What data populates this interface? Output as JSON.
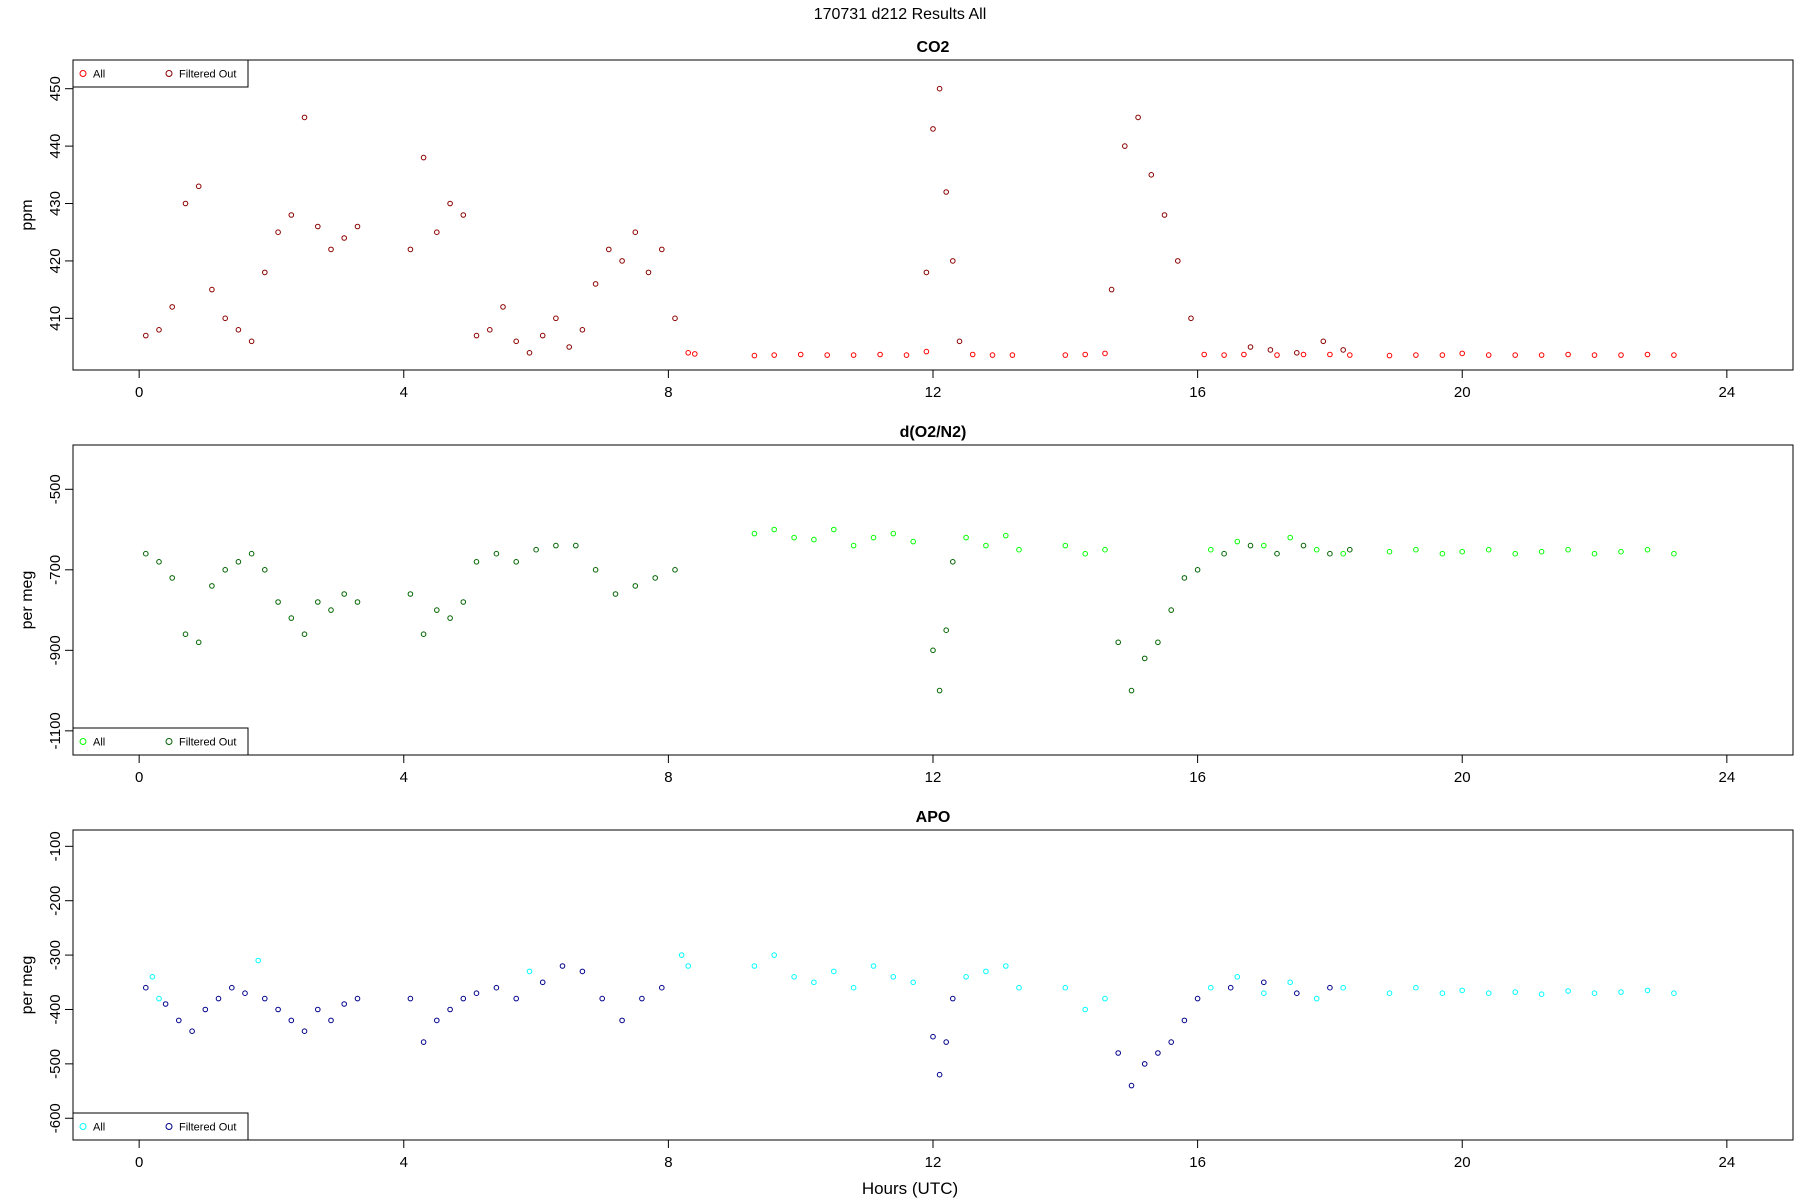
{
  "figure": {
    "title": "170731   d212   Results All",
    "xlabel": "Hours (UTC)"
  },
  "chart_data": [
    {
      "type": "scatter",
      "title": "CO2",
      "ylabel": "ppm",
      "xlim": [
        -1,
        25
      ],
      "ylim": [
        401,
        455
      ],
      "xticks": [
        0,
        4,
        8,
        12,
        16,
        20,
        24
      ],
      "yticks": [
        410,
        420,
        430,
        440,
        450
      ],
      "legend_position": "top-left",
      "colors": {
        "all": "#ff0000",
        "filtered": "#8b0000"
      },
      "series": [
        {
          "name": "All",
          "x": [
            8.3,
            8.4,
            9.3,
            9.6,
            10.0,
            10.4,
            10.8,
            11.2,
            11.6,
            11.9,
            12.6,
            12.9,
            13.2,
            14.0,
            14.3,
            14.6,
            16.1,
            16.4,
            16.7,
            17.2,
            17.6,
            18.0,
            18.3,
            18.9,
            19.3,
            19.7,
            20.0,
            20.4,
            20.8,
            21.2,
            21.6,
            22.0,
            22.4,
            22.8,
            23.2
          ],
          "y": [
            404,
            403.8,
            403.5,
            403.6,
            403.7,
            403.6,
            403.6,
            403.7,
            403.6,
            404.2,
            403.7,
            403.6,
            403.6,
            403.6,
            403.7,
            403.9,
            403.7,
            403.6,
            403.7,
            403.6,
            403.7,
            403.7,
            403.6,
            403.5,
            403.6,
            403.6,
            403.9,
            403.6,
            403.6,
            403.6,
            403.7,
            403.6,
            403.6,
            403.7,
            403.6
          ]
        },
        {
          "name": "Filtered Out",
          "x": [
            0.1,
            0.3,
            0.5,
            0.7,
            0.9,
            1.1,
            1.3,
            1.5,
            1.7,
            1.9,
            2.1,
            2.3,
            2.5,
            2.7,
            2.9,
            3.1,
            3.3,
            4.1,
            4.3,
            4.5,
            4.7,
            4.9,
            5.1,
            5.3,
            5.5,
            5.7,
            5.9,
            6.1,
            6.3,
            6.5,
            6.7,
            6.9,
            7.1,
            7.3,
            7.5,
            7.7,
            7.9,
            8.1,
            11.9,
            12.0,
            12.1,
            12.2,
            12.3,
            12.4,
            14.7,
            14.9,
            15.1,
            15.3,
            15.5,
            15.7,
            15.9,
            16.8,
            17.1,
            17.5,
            17.9,
            18.2
          ],
          "y": [
            407,
            408,
            412,
            430,
            433,
            415,
            410,
            408,
            406,
            418,
            425,
            428,
            445,
            426,
            422,
            424,
            426,
            422,
            438,
            425,
            430,
            428,
            407,
            408,
            412,
            406,
            404,
            407,
            410,
            405,
            408,
            416,
            422,
            420,
            425,
            418,
            422,
            410,
            418,
            443,
            450,
            432,
            420,
            406,
            415,
            440,
            445,
            435,
            428,
            420,
            410,
            405,
            404.5,
            404,
            406,
            404.5
          ]
        }
      ]
    },
    {
      "type": "scatter",
      "title": "d(O2/N2)",
      "ylabel": "per meg",
      "xlim": [
        -1,
        25
      ],
      "ylim": [
        -1160,
        -390
      ],
      "xticks": [
        0,
        4,
        8,
        12,
        16,
        20,
        24
      ],
      "yticks": [
        -500,
        -700,
        -900,
        -1100
      ],
      "legend_position": "bottom-left",
      "colors": {
        "all": "#00ff00",
        "filtered": "#006400"
      },
      "series": [
        {
          "name": "All",
          "x": [
            9.3,
            9.6,
            9.9,
            10.2,
            10.5,
            10.8,
            11.1,
            11.4,
            11.7,
            12.5,
            12.8,
            13.1,
            13.3,
            14.0,
            14.3,
            14.6,
            16.2,
            16.6,
            17.0,
            17.4,
            17.8,
            18.2,
            18.9,
            19.3,
            19.7,
            20.0,
            20.4,
            20.8,
            21.2,
            21.6,
            22.0,
            22.4,
            22.8,
            23.2
          ],
          "y": [
            -610,
            -600,
            -620,
            -625,
            -600,
            -640,
            -620,
            -610,
            -630,
            -620,
            -640,
            -615,
            -650,
            -640,
            -660,
            -650,
            -650,
            -630,
            -640,
            -620,
            -650,
            -660,
            -655,
            -650,
            -660,
            -655,
            -650,
            -660,
            -655,
            -650,
            -660,
            -655,
            -650,
            -660
          ]
        },
        {
          "name": "Filtered Out",
          "x": [
            0.1,
            0.3,
            0.5,
            0.7,
            0.9,
            1.1,
            1.3,
            1.5,
            1.7,
            1.9,
            2.1,
            2.3,
            2.5,
            2.7,
            2.9,
            3.1,
            3.3,
            4.1,
            4.3,
            4.5,
            4.7,
            4.9,
            5.1,
            5.4,
            5.7,
            6.0,
            6.3,
            6.6,
            6.9,
            7.2,
            7.5,
            7.8,
            8.1,
            12.0,
            12.1,
            12.2,
            12.3,
            14.8,
            15.0,
            15.2,
            15.4,
            15.6,
            15.8,
            16.0,
            16.4,
            16.8,
            17.2,
            17.6,
            18.0,
            18.3
          ],
          "y": [
            -660,
            -680,
            -720,
            -860,
            -880,
            -740,
            -700,
            -680,
            -660,
            -700,
            -780,
            -820,
            -860,
            -780,
            -800,
            -760,
            -780,
            -760,
            -860,
            -800,
            -820,
            -780,
            -680,
            -660,
            -680,
            -650,
            -640,
            -640,
            -700,
            -760,
            -740,
            -720,
            -700,
            -900,
            -1000,
            -850,
            -680,
            -880,
            -1000,
            -920,
            -880,
            -800,
            -720,
            -700,
            -660,
            -640,
            -660,
            -640,
            -660,
            -650
          ]
        }
      ]
    },
    {
      "type": "scatter",
      "title": "APO",
      "ylabel": "per meg",
      "xlim": [
        -1,
        25
      ],
      "ylim": [
        -640,
        -70
      ],
      "xticks": [
        0,
        4,
        8,
        12,
        16,
        20,
        24
      ],
      "yticks": [
        -100,
        -200,
        -300,
        -400,
        -500,
        -600
      ],
      "legend_position": "bottom-left",
      "colors": {
        "all": "#00ffff",
        "filtered": "#00008b"
      },
      "series": [
        {
          "name": "All",
          "x": [
            0.2,
            0.3,
            1.8,
            5.9,
            8.2,
            8.3,
            9.3,
            9.6,
            9.9,
            10.2,
            10.5,
            10.8,
            11.1,
            11.4,
            11.7,
            12.5,
            12.8,
            13.1,
            13.3,
            14.0,
            14.3,
            14.6,
            16.2,
            16.6,
            17.0,
            17.4,
            17.8,
            18.2,
            18.9,
            19.3,
            19.7,
            20.0,
            20.4,
            20.8,
            21.2,
            21.6,
            22.0,
            22.4,
            22.8,
            23.2
          ],
          "y": [
            -340,
            -380,
            -310,
            -330,
            -300,
            -320,
            -320,
            -300,
            -340,
            -350,
            -330,
            -360,
            -320,
            -340,
            -350,
            -340,
            -330,
            -320,
            -360,
            -360,
            -400,
            -380,
            -360,
            -340,
            -370,
            -350,
            -380,
            -360,
            -370,
            -360,
            -370,
            -365,
            -370,
            -368,
            -372,
            -366,
            -370,
            -368,
            -365,
            -370
          ]
        },
        {
          "name": "Filtered Out",
          "x": [
            0.1,
            0.4,
            0.6,
            0.8,
            1.0,
            1.2,
            1.4,
            1.6,
            1.9,
            2.1,
            2.3,
            2.5,
            2.7,
            2.9,
            3.1,
            3.3,
            4.1,
            4.3,
            4.5,
            4.7,
            4.9,
            5.1,
            5.4,
            5.7,
            6.1,
            6.4,
            6.7,
            7.0,
            7.3,
            7.6,
            7.9,
            12.0,
            12.1,
            12.2,
            12.3,
            14.8,
            15.0,
            15.2,
            15.4,
            15.6,
            15.8,
            16.0,
            16.5,
            17.0,
            17.5,
            18.0
          ],
          "y": [
            -360,
            -390,
            -420,
            -440,
            -400,
            -380,
            -360,
            -370,
            -380,
            -400,
            -420,
            -440,
            -400,
            -420,
            -390,
            -380,
            -380,
            -460,
            -420,
            -400,
            -380,
            -370,
            -360,
            -380,
            -350,
            -320,
            -330,
            -380,
            -420,
            -380,
            -360,
            -450,
            -520,
            -460,
            -380,
            -480,
            -540,
            -500,
            -480,
            -460,
            -420,
            -380,
            -360,
            -350,
            -370,
            -360
          ]
        }
      ]
    }
  ]
}
